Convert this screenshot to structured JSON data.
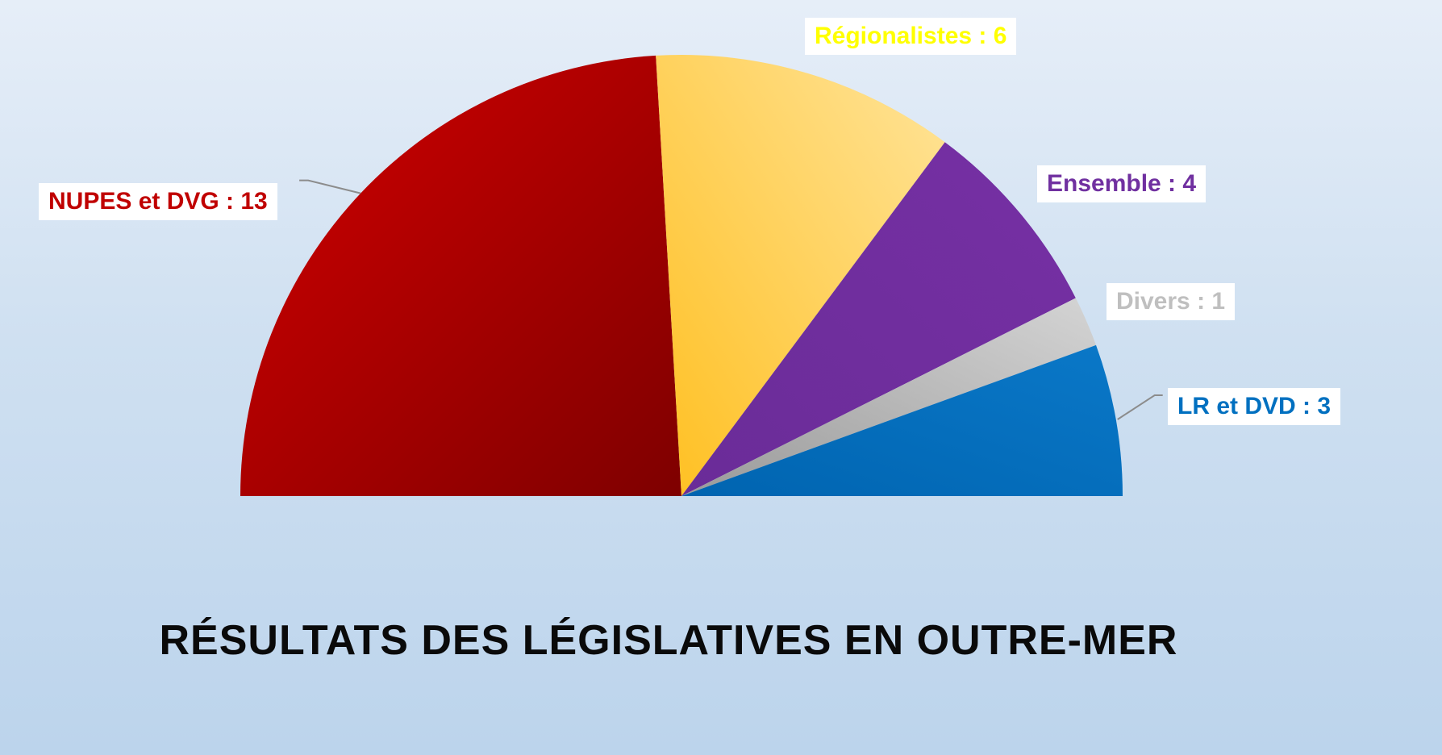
{
  "chart_data": {
    "type": "pie",
    "variant": "half-donut-parliament",
    "title": "RÉSULTATS DES LÉGISLATIVES EN OUTRE-MER",
    "slices": [
      {
        "label": "NUPES et DVG",
        "value": 13,
        "text": "NUPES et DVG : 13",
        "color": "#c00000",
        "label_color": "#c00000"
      },
      {
        "label": "Régionalistes",
        "value": 6,
        "text": "Régionalistes : 6",
        "color": "#ffd766",
        "label_color": "#ffff00"
      },
      {
        "label": "Ensemble",
        "value": 4,
        "text": "Ensemble : 4",
        "color": "#7030a0",
        "label_color": "#7030a0"
      },
      {
        "label": "Divers",
        "value": 1,
        "text": "Divers : 1",
        "color": "#bfbfbf",
        "label_color": "#bfbfbf"
      },
      {
        "label": "LR et DVD",
        "value": 3,
        "text": "LR et DVD : 3",
        "color": "#0070c0",
        "label_color": "#0070c0"
      }
    ],
    "legend": "none",
    "grid": false
  }
}
